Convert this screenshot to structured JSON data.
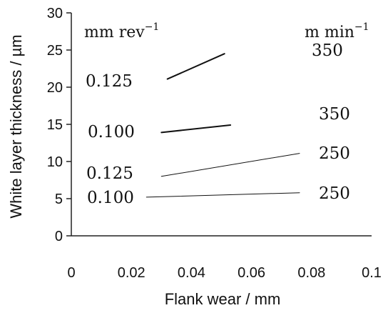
{
  "chart_data": {
    "type": "line",
    "title": "",
    "xlabel": "Flank wear / mm",
    "ylabel": "White layer thickness / µm",
    "xlim": [
      0,
      0.1
    ],
    "ylim": [
      0,
      30
    ],
    "x_ticks": [
      "0",
      "0.02",
      "0.04",
      "0.06",
      "0.08",
      "0.1"
    ],
    "y_ticks": [
      "0",
      "5",
      "10",
      "15",
      "20",
      "25",
      "30"
    ],
    "grid": false,
    "legend": "none",
    "units": {
      "feed": {
        "base": "mm rev",
        "exp": "−1"
      },
      "speed": {
        "base": "m min",
        "exp": "−1"
      }
    },
    "series": [
      {
        "feed_label": "0.125",
        "speed_label": "350",
        "line_width": 2,
        "points": [
          {
            "x": 0.032,
            "y": 21.1
          },
          {
            "x": 0.051,
            "y": 24.5
          }
        ]
      },
      {
        "feed_label": "0.100",
        "speed_label": "350",
        "line_width": 2,
        "points": [
          {
            "x": 0.03,
            "y": 13.9
          },
          {
            "x": 0.053,
            "y": 14.9
          }
        ]
      },
      {
        "feed_label": "0.125",
        "speed_label": "250",
        "line_width": 1,
        "points": [
          {
            "x": 0.03,
            "y": 8.0
          },
          {
            "x": 0.076,
            "y": 11.1
          }
        ]
      },
      {
        "feed_label": "0.100",
        "speed_label": "250",
        "line_width": 1,
        "points": [
          {
            "x": 0.025,
            "y": 5.2
          },
          {
            "x": 0.076,
            "y": 5.8
          }
        ]
      }
    ]
  }
}
